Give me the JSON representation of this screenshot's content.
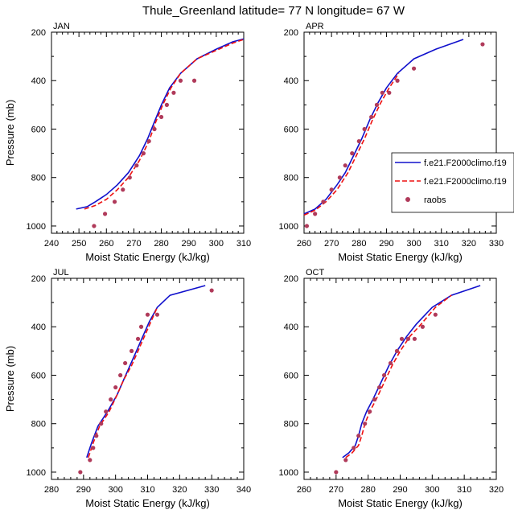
{
  "title": "Thule_Greenland  latitude= 77 N longitude= 67 W",
  "colors": {
    "model_a": "#1010cc",
    "model_b": "#ee1111",
    "raobs": "#b03a5a"
  },
  "legend": {
    "location": "APR panel, right side",
    "items": [
      {
        "label": "f.e21.F2000climo.f19",
        "style": "solid-line",
        "color": "#1010cc"
      },
      {
        "label": "f.e21.F2000climo.f19",
        "style": "dashed-line",
        "color": "#ee1111"
      },
      {
        "label": "raobs",
        "style": "dot",
        "color": "#b03a5a"
      }
    ]
  },
  "chart_data": [
    {
      "panel": "JAN",
      "type": "line",
      "xlabel": "Moist Static Energy (kJ/kg)",
      "ylabel": "Pressure (mb)",
      "xlim": [
        240,
        310
      ],
      "xticks": [
        240,
        250,
        260,
        270,
        280,
        290,
        300,
        310
      ],
      "ylim": [
        200,
        1030
      ],
      "yticks": [
        200,
        400,
        600,
        800,
        1000
      ],
      "y_reversed": true,
      "series": [
        {
          "name": "f.e21.F2000climo.f19",
          "style": "solid",
          "points": [
            [
              249,
              930
            ],
            [
              253,
              920
            ],
            [
              256,
              900
            ],
            [
              260,
              870
            ],
            [
              264,
              830
            ],
            [
              268,
              780
            ],
            [
              272,
              710
            ],
            [
              275,
              640
            ],
            [
              277.5,
              570
            ],
            [
              280,
              500
            ],
            [
              283,
              430
            ],
            [
              287,
              370
            ],
            [
              293,
              310
            ],
            [
              300,
              270
            ],
            [
              306,
              240
            ],
            [
              310,
              228
            ]
          ]
        },
        {
          "name": "f.e21.F2000climo.f19",
          "style": "dashed",
          "points": [
            [
              252,
              930
            ],
            [
              256,
              915
            ],
            [
              260,
              890
            ],
            [
              264,
              850
            ],
            [
              268,
              800
            ],
            [
              272,
              730
            ],
            [
              275.5,
              650
            ],
            [
              278,
              570
            ],
            [
              280.5,
              500
            ],
            [
              283.5,
              430
            ],
            [
              287,
              370
            ],
            [
              293,
              310
            ],
            [
              300,
              275
            ],
            [
              306,
              245
            ],
            [
              310,
              230
            ]
          ]
        },
        {
          "name": "raobs",
          "style": "dots",
          "points": [
            [
              255.5,
              1000
            ],
            [
              259.5,
              950
            ],
            [
              263,
              900
            ],
            [
              266,
              850
            ],
            [
              268.5,
              800
            ],
            [
              271,
              750
            ],
            [
              273.5,
              700
            ],
            [
              275.5,
              650
            ],
            [
              277.5,
              600
            ],
            [
              280,
              550
            ],
            [
              282,
              500
            ],
            [
              284.5,
              450
            ],
            [
              287,
              400
            ],
            [
              292,
              400
            ]
          ]
        }
      ]
    },
    {
      "panel": "APR",
      "type": "line",
      "xlabel": "Moist Static Energy (kJ/kg)",
      "ylabel": "",
      "xlim": [
        260,
        330
      ],
      "xticks": [
        260,
        270,
        280,
        290,
        300,
        310,
        320,
        330
      ],
      "ylim": [
        200,
        1030
      ],
      "yticks": [
        200,
        400,
        600,
        800,
        1000
      ],
      "y_reversed": true,
      "series": [
        {
          "name": "f.e21.F2000climo.f19",
          "style": "solid",
          "points": [
            [
              260,
              950
            ],
            [
              264,
              930
            ],
            [
              268,
              890
            ],
            [
              272,
              830
            ],
            [
              275,
              780
            ],
            [
              278,
              710
            ],
            [
              281,
              640
            ],
            [
              284,
              560
            ],
            [
              287,
              490
            ],
            [
              290,
              430
            ],
            [
              294,
              370
            ],
            [
              300,
              310
            ],
            [
              308,
              270
            ],
            [
              318,
              230
            ]
          ]
        },
        {
          "name": "f.e21.F2000climo.f19",
          "style": "dashed",
          "points": [
            [
              260,
              955
            ],
            [
              264,
              935
            ],
            [
              268,
              900
            ],
            [
              272,
              850
            ],
            [
              276,
              780
            ],
            [
              279,
              710
            ],
            [
              282,
              640
            ],
            [
              285,
              560
            ],
            [
              288,
              490
            ],
            [
              291,
              430
            ],
            [
              294.5,
              370
            ]
          ]
        },
        {
          "name": "raobs",
          "style": "dots",
          "points": [
            [
              261,
              1000
            ],
            [
              264,
              950
            ],
            [
              267,
              900
            ],
            [
              270,
              850
            ],
            [
              273,
              800
            ],
            [
              275,
              750
            ],
            [
              277.5,
              700
            ],
            [
              280,
              650
            ],
            [
              282,
              600
            ],
            [
              284.5,
              550
            ],
            [
              286.5,
              500
            ],
            [
              288.5,
              450
            ],
            [
              291,
              450
            ],
            [
              294,
              400
            ],
            [
              300,
              350
            ],
            [
              325,
              250
            ]
          ]
        }
      ]
    },
    {
      "panel": "JUL",
      "type": "line",
      "xlabel": "Moist Static Energy (kJ/kg)",
      "ylabel": "Pressure (mb)",
      "xlim": [
        280,
        340
      ],
      "xticks": [
        280,
        290,
        300,
        310,
        320,
        330,
        340
      ],
      "ylim": [
        200,
        1030
      ],
      "yticks": [
        200,
        400,
        600,
        800,
        1000
      ],
      "y_reversed": true,
      "series": [
        {
          "name": "f.e21.F2000climo.f19",
          "style": "solid",
          "points": [
            [
              291,
              940
            ],
            [
              292.5,
              880
            ],
            [
              294.5,
              810
            ],
            [
              297.5,
              750
            ],
            [
              300.5,
              680
            ],
            [
              302.5,
              620
            ],
            [
              304.5,
              560
            ],
            [
              306.5,
              500
            ],
            [
              308.5,
              440
            ],
            [
              310.5,
              380
            ],
            [
              313,
              320
            ],
            [
              317,
              270
            ],
            [
              328,
              230
            ]
          ]
        },
        {
          "name": "f.e21.F2000climo.f19",
          "style": "dashed",
          "points": [
            [
              291.5,
              940
            ],
            [
              293,
              880
            ],
            [
              295,
              810
            ],
            [
              298,
              750
            ],
            [
              300.5,
              680
            ],
            [
              302.5,
              620
            ],
            [
              305,
              560
            ],
            [
              307,
              500
            ],
            [
              309,
              440
            ],
            [
              311,
              380
            ],
            [
              313,
              320
            ]
          ]
        },
        {
          "name": "raobs",
          "style": "dots",
          "points": [
            [
              289,
              1000
            ],
            [
              292,
              950
            ],
            [
              293,
              900
            ],
            [
              294,
              850
            ],
            [
              295.5,
              800
            ],
            [
              297,
              750
            ],
            [
              298.5,
              700
            ],
            [
              300,
              650
            ],
            [
              301.5,
              600
            ],
            [
              303,
              550
            ],
            [
              305,
              500
            ],
            [
              307,
              450
            ],
            [
              308,
              400
            ],
            [
              310,
              350
            ],
            [
              313,
              350
            ],
            [
              330,
              250
            ]
          ]
        }
      ]
    },
    {
      "panel": "OCT",
      "type": "line",
      "xlabel": "Moist Static Energy (kJ/kg)",
      "ylabel": "",
      "xlim": [
        260,
        320
      ],
      "xticks": [
        260,
        270,
        280,
        290,
        300,
        310,
        320
      ],
      "ylim": [
        200,
        1030
      ],
      "yticks": [
        200,
        400,
        600,
        800,
        1000
      ],
      "y_reversed": true,
      "series": [
        {
          "name": "f.e21.F2000climo.f19",
          "style": "solid",
          "points": [
            [
              272,
              940
            ],
            [
              274,
              920
            ],
            [
              276,
              890
            ],
            [
              277,
              850
            ],
            [
              278,
              800
            ],
            [
              279.5,
              750
            ],
            [
              281.5,
              700
            ],
            [
              284,
              630
            ],
            [
              286.5,
              560
            ],
            [
              289,
              500
            ],
            [
              292,
              440
            ],
            [
              295,
              390
            ],
            [
              300,
              320
            ],
            [
              306,
              270
            ],
            [
              315,
              230
            ]
          ]
        },
        {
          "name": "f.e21.F2000climo.f19",
          "style": "dashed",
          "points": [
            [
              273,
              940
            ],
            [
              275,
              920
            ],
            [
              277,
              890
            ],
            [
              278,
              850
            ],
            [
              279,
              800
            ],
            [
              280.5,
              750
            ],
            [
              282.5,
              700
            ],
            [
              285,
              630
            ],
            [
              287.5,
              560
            ],
            [
              290,
              500
            ],
            [
              293,
              440
            ],
            [
              296.5,
              390
            ],
            [
              301,
              320
            ],
            [
              306,
              270
            ]
          ]
        },
        {
          "name": "raobs",
          "style": "dots",
          "points": [
            [
              270,
              1000
            ],
            [
              273,
              950
            ],
            [
              275.5,
              900
            ],
            [
              277,
              850
            ],
            [
              279,
              800
            ],
            [
              280.5,
              750
            ],
            [
              282,
              700
            ],
            [
              283.5,
              650
            ],
            [
              285,
              600
            ],
            [
              287,
              550
            ],
            [
              289,
              500
            ],
            [
              290.5,
              450
            ],
            [
              292.5,
              450
            ],
            [
              294.5,
              450
            ],
            [
              297,
              400
            ],
            [
              301,
              350
            ]
          ]
        }
      ]
    }
  ]
}
